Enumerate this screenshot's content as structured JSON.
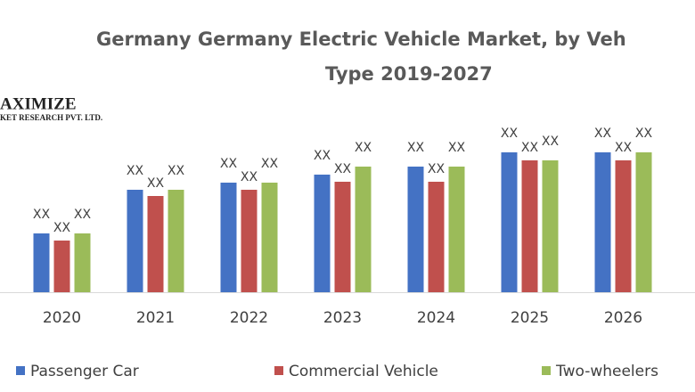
{
  "chart_data": {
    "type": "bar",
    "title": [
      "Germany Germany Electric Vehicle Market, by Veh",
      "Type 2019-2027"
    ],
    "logo": [
      "AXIMIZE",
      "KET RESEARCH PVT. LTD."
    ],
    "categories": [
      "2020",
      "2021",
      "2022",
      "2023",
      "2024",
      "2025",
      "2026"
    ],
    "series": [
      {
        "name": "Passenger Car",
        "color": "#4472c4",
        "values": [
          66,
          115,
          123,
          132,
          141,
          157,
          157
        ],
        "value_labels": [
          "XX",
          "XX",
          "XX",
          "XX",
          "XX",
          "XX",
          "XX"
        ]
      },
      {
        "name": "Commercial Vehicle",
        "color": "#c0504d",
        "values": [
          58,
          108,
          115,
          124,
          124,
          148,
          148
        ],
        "value_labels": [
          "XX",
          "XX",
          "XX",
          "XX",
          "XX",
          "XX",
          "XX"
        ]
      },
      {
        "name": "Two-wheelers",
        "color": "#9bbb59",
        "values": [
          66,
          115,
          123,
          141,
          141,
          148,
          157
        ],
        "value_labels": [
          "XX",
          "XX",
          "XX",
          "XX",
          "XX",
          "XX",
          "XX"
        ]
      }
    ]
  }
}
